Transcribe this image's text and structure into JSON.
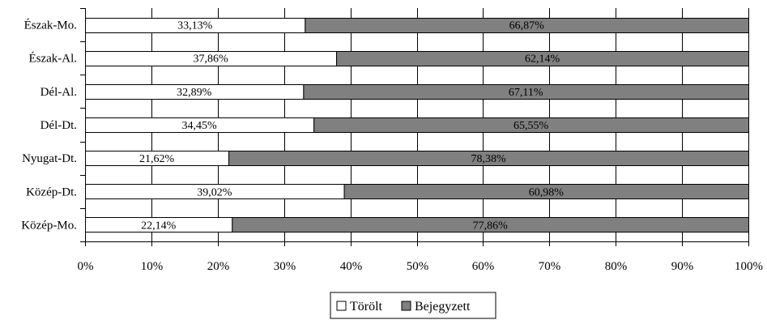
{
  "chart_data": {
    "type": "bar",
    "orientation": "horizontal",
    "stacked": "percent",
    "categories": [
      "Észak-Mo.",
      "Észak-Al.",
      "Dél-Al.",
      "Dél-Dt.",
      "Nyugat-Dt.",
      "Közép-Dt.",
      "Közép-Mo."
    ],
    "series": [
      {
        "name": "Törölt",
        "color": "#ffffff",
        "values": [
          33.13,
          37.86,
          32.89,
          34.45,
          21.62,
          39.02,
          22.14
        ],
        "labels": [
          "33,13%",
          "37,86%",
          "32,89%",
          "34,45%",
          "21,62%",
          "39,02%",
          "22,14%"
        ]
      },
      {
        "name": "Bejegyzett",
        "color": "#808080",
        "values": [
          66.87,
          62.14,
          67.11,
          65.55,
          78.38,
          60.98,
          77.86
        ],
        "labels": [
          "66,87%",
          "62,14%",
          "67,11%",
          "65,55%",
          "78,38%",
          "60,98%",
          "77,86%"
        ]
      }
    ],
    "xlim": [
      0,
      100
    ],
    "xticks": [
      "0%",
      "10%",
      "20%",
      "30%",
      "40%",
      "50%",
      "60%",
      "70%",
      "80%",
      "90%",
      "100%"
    ],
    "grid": "vertical",
    "legend": "bottom"
  }
}
